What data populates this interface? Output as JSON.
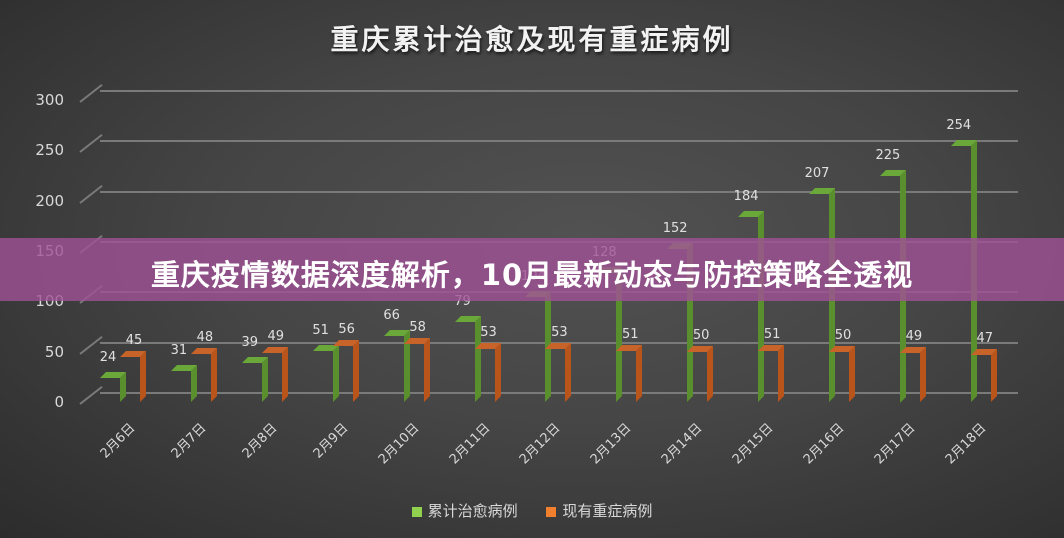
{
  "chart_data": {
    "type": "bar",
    "title": "重庆累计治愈及现有重症病例",
    "xlabel": "",
    "ylabel": "",
    "ylim": [
      0,
      300
    ],
    "yticks": [
      0,
      50,
      100,
      150,
      200,
      250,
      300
    ],
    "grid": true,
    "legend_position": "bottom",
    "categories": [
      "2月6日",
      "2月7日",
      "2月8日",
      "2月9日",
      "2月10日",
      "2月11日",
      "2月12日",
      "2月13日",
      "2月14日",
      "2月15日",
      "2月16日",
      "2月17日",
      "2月18日"
    ],
    "series": [
      {
        "name": "累计治愈病例",
        "color": "#92d050",
        "values": [
          24,
          31,
          39,
          51,
          66,
          79,
          104,
          128,
          152,
          184,
          207,
          225,
          254
        ]
      },
      {
        "name": "现有重症病例",
        "color": "#f07f2e",
        "values": [
          45,
          48,
          49,
          56,
          58,
          53,
          53,
          51,
          50,
          51,
          50,
          49,
          47
        ]
      }
    ]
  },
  "banner": {
    "text": "重庆疫情数据深度解析，10月最新动态与防控策略全透视",
    "color": "#a05096"
  }
}
